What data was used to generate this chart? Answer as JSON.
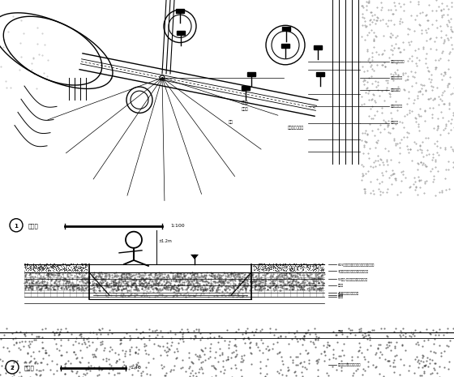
{
  "bg_color": "#ffffff",
  "line_color": "#000000",
  "gray_color": "#888888",
  "stipple_color": "#999999",
  "dark_stipple": "#555555"
}
